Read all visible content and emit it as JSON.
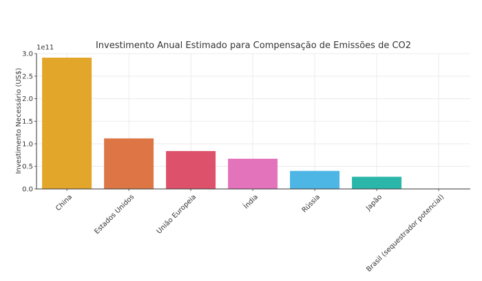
{
  "chart_data": {
    "type": "bar",
    "title": "Investimento Anual Estimado para Compensação de Emissões de CO2",
    "xlabel": "",
    "ylabel": "Investimento Necessário (US$)",
    "offset_label": "1e11",
    "categories": [
      "China",
      "Estados Unidos",
      "União Europeia",
      "Índia",
      "Rússia",
      "Japão",
      "Brasil (sequestrador potencial)"
    ],
    "values": [
      291000000000.0,
      112000000000.0,
      84000000000.0,
      67000000000.0,
      40000000000.0,
      27000000000.0,
      0
    ],
    "colors": [
      "#e0a11f",
      "#db6f3a",
      "#db4862",
      "#e26db8",
      "#44b2e4",
      "#1fb2a4",
      "#9e9e9e"
    ],
    "ylim": [
      0,
      300000000000.0
    ],
    "yticks": [
      0,
      50000000000.0,
      100000000000.0,
      150000000000.0,
      200000000000.0,
      250000000000.0,
      300000000000.0
    ],
    "ytick_labels": [
      "0.0",
      "0.5",
      "1.0",
      "1.5",
      "2.0",
      "2.5",
      "3.0"
    ],
    "grid": true,
    "legend": "none"
  }
}
